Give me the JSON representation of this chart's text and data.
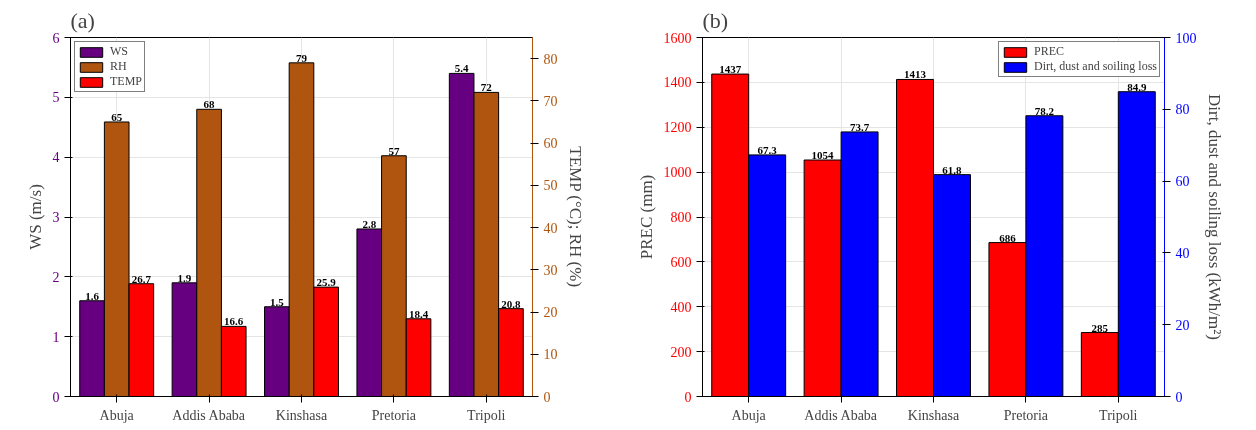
{
  "chart_data": [
    {
      "type": "bar",
      "title": "(a)",
      "categories": [
        "Abuja",
        "Addis Ababa",
        "Kinshasa",
        "Pretoria",
        "Tripoli"
      ],
      "ylabel": "WS (m/s)",
      "y2label": "TEMP (°C); RH (%)",
      "ylim": [
        0,
        6
      ],
      "yticks": [
        0,
        1,
        2,
        3,
        4,
        5,
        6
      ],
      "y2lim": [
        0,
        85
      ],
      "y2ticks": [
        0,
        10,
        20,
        30,
        40,
        50,
        60,
        70,
        80
      ],
      "grid": true,
      "legend": "top left",
      "data_labels": true,
      "series": [
        {
          "name": "WS",
          "color": "#660080",
          "values": [
            1.6,
            1.9,
            1.5,
            2.8,
            5.4
          ]
        },
        {
          "name": "RH",
          "color": "#b05510",
          "axis": "y2",
          "values": [
            65,
            68,
            79,
            57,
            72
          ]
        },
        {
          "name": "TEMP",
          "color": "#ff0000",
          "axis": "y2",
          "values": [
            26.7,
            16.6,
            25.9,
            18.4,
            20.8
          ]
        }
      ]
    },
    {
      "type": "bar",
      "title": "(b)",
      "categories": [
        "Abuja",
        "Addis Ababa",
        "Kinshasa",
        "Pretoria",
        "Tripoli"
      ],
      "ylabel": "PREC (mm)",
      "y2label": "Dirt, dust and soiling loss (kWh/m²)",
      "ylim": [
        0,
        1600
      ],
      "yticks": [
        0,
        200,
        400,
        600,
        800,
        1000,
        1200,
        1400,
        1600
      ],
      "y2lim": [
        0,
        100
      ],
      "y2ticks": [
        0,
        20,
        40,
        60,
        80,
        100
      ],
      "grid": true,
      "legend": "top right",
      "data_labels": true,
      "series": [
        {
          "name": "PREC",
          "color": "#ff0000",
          "values": [
            1437,
            1054,
            1413,
            686,
            285
          ]
        },
        {
          "name": "Dirt, dust and soiling loss",
          "color": "#0000ff",
          "axis": "y2",
          "values": [
            67.3,
            73.7,
            61.8,
            78.2,
            84.9
          ]
        }
      ]
    }
  ]
}
